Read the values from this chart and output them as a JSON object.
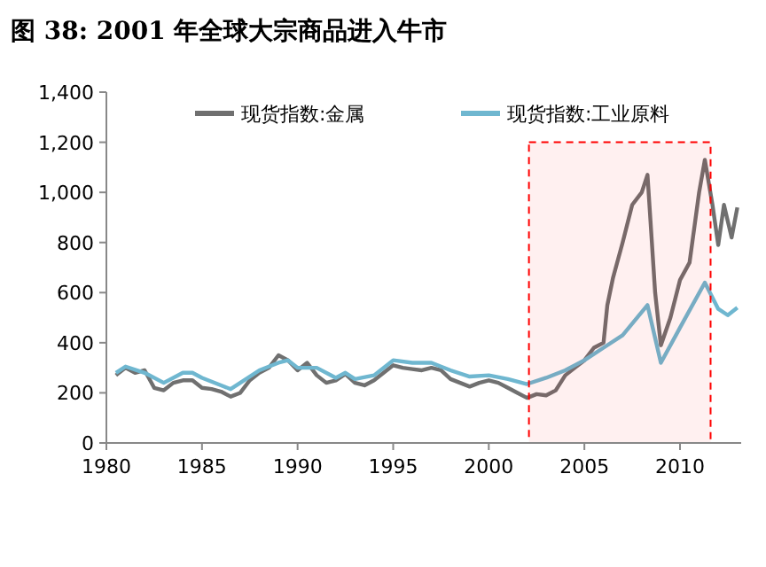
{
  "chart_data": {
    "type": "line",
    "title": "图 38:  2001 年全球大宗商品进入牛市",
    "xlim": [
      1980,
      2013.2
    ],
    "xticks": [
      1980,
      1985,
      1990,
      1995,
      2000,
      2005,
      2010
    ],
    "ylim": [
      0,
      1400
    ],
    "yticks": [
      {
        "value": 0,
        "label": "0"
      },
      {
        "value": 200,
        "label": "200"
      },
      {
        "value": 400,
        "label": "400"
      },
      {
        "value": 600,
        "label": "600"
      },
      {
        "value": 800,
        "label": "800"
      },
      {
        "value": 1000,
        "label": "1,000"
      },
      {
        "value": 1200,
        "label": "1,200"
      },
      {
        "value": 1400,
        "label": "1,400"
      }
    ],
    "legend": "top",
    "grid": false,
    "bands": [
      {
        "axis": "x",
        "from": 2002.1,
        "to": 2011.6,
        "color": "#ff0000"
      }
    ],
    "series": [
      {
        "name": "现货指数:金属",
        "color": "#707070",
        "x": [
          1980.5,
          1981,
          1981.5,
          1982,
          1982.5,
          1983,
          1983.5,
          1984,
          1984.5,
          1985,
          1985.5,
          1986,
          1986.5,
          1987,
          1987.5,
          1988,
          1988.5,
          1989,
          1989.5,
          1990,
          1990.5,
          1991,
          1991.5,
          1992,
          1992.5,
          1993,
          1993.5,
          1994,
          1994.5,
          1995,
          1995.5,
          1996,
          1996.5,
          1997,
          1997.5,
          1998,
          1998.5,
          1999,
          1999.5,
          2000,
          2000.5,
          2001,
          2001.5,
          2002,
          2002.5,
          2003,
          2003.5,
          2004,
          2004.5,
          2005,
          2005.5,
          2006,
          2006.2,
          2006.5,
          2007,
          2007.5,
          2008,
          2008.3,
          2008.7,
          2009,
          2009.5,
          2010,
          2010.5,
          2011,
          2011.3,
          2011.7,
          2012,
          2012.3,
          2012.7,
          2013
        ],
        "values": [
          270,
          300,
          280,
          290,
          220,
          210,
          240,
          250,
          250,
          220,
          215,
          205,
          185,
          200,
          250,
          280,
          300,
          350,
          330,
          290,
          320,
          270,
          240,
          250,
          275,
          240,
          230,
          250,
          280,
          310,
          300,
          295,
          290,
          300,
          290,
          255,
          240,
          225,
          240,
          250,
          240,
          220,
          200,
          180,
          195,
          190,
          210,
          270,
          300,
          330,
          380,
          400,
          550,
          660,
          800,
          950,
          1000,
          1070,
          600,
          390,
          500,
          650,
          720,
          1000,
          1130,
          950,
          790,
          950,
          820,
          940
        ]
      },
      {
        "name": "现货指数:工业原料",
        "color": "#6fb7d0",
        "x": [
          1980.5,
          1981,
          1982,
          1983,
          1984,
          1984.5,
          1985,
          1986,
          1986.5,
          1987,
          1988,
          1989,
          1989.5,
          1990,
          1991,
          1992,
          1992.5,
          1993,
          1994,
          1995,
          1996,
          1997,
          1998,
          1999,
          2000,
          2001,
          2002,
          2003,
          2004,
          2005,
          2006,
          2007,
          2008.3,
          2009,
          2010,
          2011.3,
          2012,
          2012.5,
          2013
        ],
        "values": [
          280,
          305,
          280,
          240,
          280,
          280,
          260,
          230,
          215,
          240,
          290,
          320,
          330,
          300,
          300,
          260,
          280,
          255,
          270,
          330,
          320,
          320,
          290,
          265,
          270,
          255,
          235,
          260,
          290,
          330,
          380,
          430,
          550,
          320,
          460,
          640,
          535,
          510,
          540
        ]
      }
    ]
  }
}
